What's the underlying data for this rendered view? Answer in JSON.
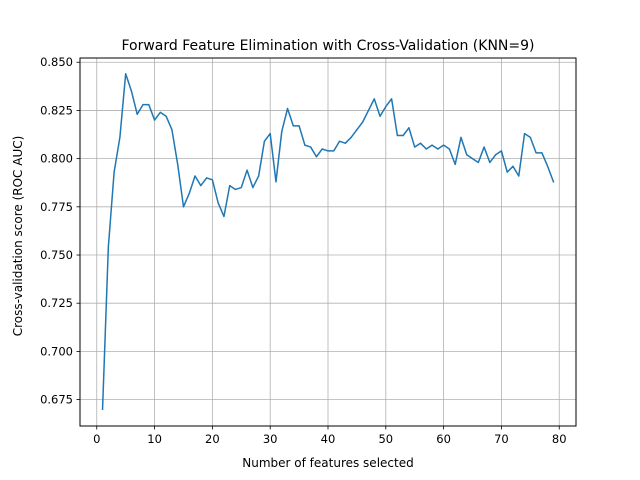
{
  "chart_data": {
    "type": "line",
    "title": "Forward Feature Elimination with Cross-Validation (KNN=9)",
    "xlabel": "Number of features selected",
    "ylabel": "Cross-validation score (ROC AUC)",
    "xlim": [
      -2.9,
      82.9
    ],
    "ylim": [
      0.6613,
      0.8522
    ],
    "xticks": [
      0,
      10,
      20,
      30,
      40,
      50,
      60,
      70,
      80
    ],
    "xtick_labels": [
      "0",
      "10",
      "20",
      "30",
      "40",
      "50",
      "60",
      "70",
      "80"
    ],
    "yticks": [
      0.675,
      0.7,
      0.725,
      0.75,
      0.775,
      0.8,
      0.825,
      0.85
    ],
    "ytick_labels": [
      "0.675",
      "0.700",
      "0.725",
      "0.750",
      "0.775",
      "0.800",
      "0.825",
      "0.850"
    ],
    "grid": true,
    "line_color": "#1f77b4",
    "x": [
      1,
      2,
      3,
      4,
      5,
      6,
      7,
      8,
      9,
      10,
      11,
      12,
      13,
      14,
      15,
      16,
      17,
      18,
      19,
      20,
      21,
      22,
      23,
      24,
      25,
      26,
      27,
      28,
      29,
      30,
      31,
      32,
      33,
      34,
      35,
      36,
      37,
      38,
      39,
      40,
      41,
      42,
      43,
      44,
      45,
      46,
      47,
      48,
      49,
      50,
      51,
      52,
      53,
      54,
      55,
      56,
      57,
      58,
      59,
      60,
      61,
      62,
      63,
      64,
      65,
      66,
      67,
      68,
      69,
      70,
      71,
      72,
      73,
      74,
      75,
      76,
      77,
      78,
      79
    ],
    "values": [
      0.67,
      0.754,
      0.793,
      0.811,
      0.844,
      0.835,
      0.823,
      0.828,
      0.828,
      0.82,
      0.824,
      0.822,
      0.815,
      0.797,
      0.775,
      0.782,
      0.791,
      0.786,
      0.79,
      0.789,
      0.777,
      0.77,
      0.786,
      0.784,
      0.785,
      0.794,
      0.785,
      0.791,
      0.809,
      0.813,
      0.788,
      0.814,
      0.826,
      0.817,
      0.817,
      0.807,
      0.806,
      0.801,
      0.805,
      0.804,
      0.804,
      0.809,
      0.808,
      0.811,
      0.815,
      0.819,
      0.825,
      0.831,
      0.822,
      0.827,
      0.831,
      0.812,
      0.812,
      0.816,
      0.806,
      0.808,
      0.805,
      0.807,
      0.805,
      0.807,
      0.805,
      0.797,
      0.811,
      0.802,
      0.8,
      0.798,
      0.806,
      0.798,
      0.802,
      0.804,
      0.793,
      0.796,
      0.791,
      0.813,
      0.811,
      0.803,
      0.803,
      0.796,
      0.788
    ]
  }
}
